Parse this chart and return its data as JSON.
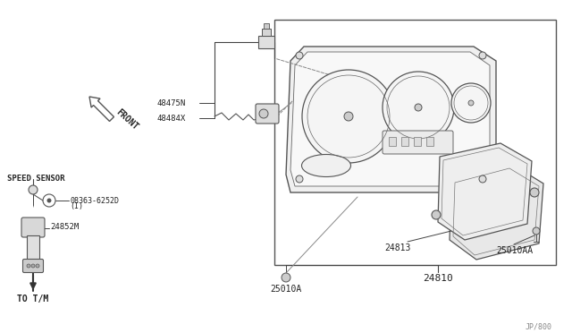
{
  "bg_color": "#ffffff",
  "line_color": "#444444",
  "page_ref": "JP/800",
  "labels": {
    "front": "FRONT",
    "48475N": "48475N",
    "48484X": "48484X",
    "speed_sensor": "SPEED SENSOR",
    "08363": "08363-6252D",
    "08363b": "(I)",
    "24852M": "24852M",
    "to_tm": "TO T/M",
    "24813": "24813",
    "25010AA": "25010AA",
    "24810": "24810",
    "25010A": "25010A"
  },
  "text_color": "#222222"
}
